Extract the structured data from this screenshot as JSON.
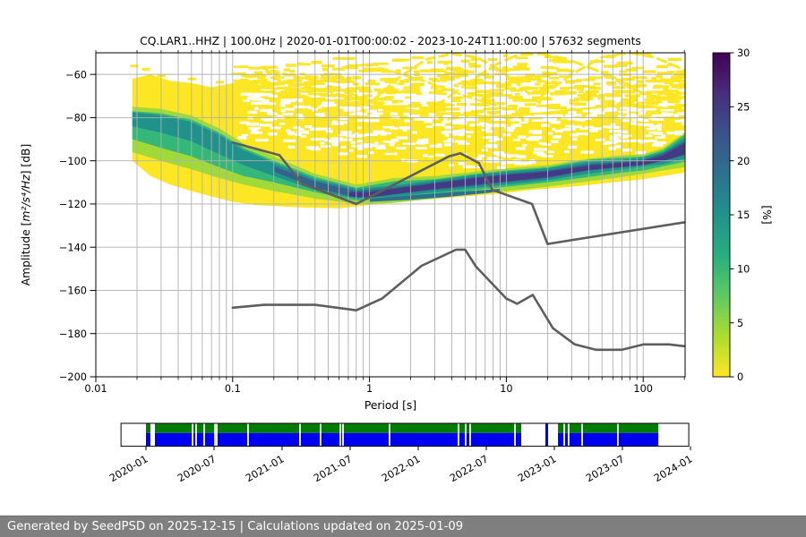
{
  "title": "CQ.LAR1..HHZ | 100.0Hz | 2020-01-01T00:00:02 - 2023-10-24T11:00:00 | 57632 segments",
  "footer": {
    "text": "Generated by SeedPSD on 2025-12-15 | Calculations updated on 2025-01-09"
  },
  "chart_data": {
    "type": "heatmap",
    "title": "CQ.LAR1..HHZ | 100.0Hz | 2020-01-01T00:00:02 - 2023-10-24T11:00:00 | 57632 segments",
    "xlabel": "Period [s]",
    "ylabel": "Amplitude [m²/s⁴/Hz] [dB]",
    "xscale": "log",
    "xlim": [
      0.01,
      200
    ],
    "ylim": [
      -200,
      -50
    ],
    "xticks": [
      {
        "v": 0.01,
        "label": "0.01"
      },
      {
        "v": 0.1,
        "label": "0.1"
      },
      {
        "v": 1,
        "label": "1"
      },
      {
        "v": 10,
        "label": "10"
      },
      {
        "v": 100,
        "label": "100"
      }
    ],
    "yticks": [
      {
        "v": -60,
        "label": "−60"
      },
      {
        "v": -80,
        "label": "−80"
      },
      {
        "v": -100,
        "label": "−100"
      },
      {
        "v": -120,
        "label": "−120"
      },
      {
        "v": -140,
        "label": "−140"
      },
      {
        "v": -160,
        "label": "−160"
      },
      {
        "v": -180,
        "label": "−180"
      },
      {
        "v": -200,
        "label": "−200"
      }
    ],
    "grid_color": "#b0b0b0",
    "colorbar": {
      "label": "[%]",
      "ticks": [
        0,
        5,
        10,
        15,
        20,
        25,
        30
      ],
      "cmap": "viridis_r",
      "stops_bottom_to_top": [
        "#fde725",
        "#addc30",
        "#5ec962",
        "#28ae80",
        "#21918c",
        "#2c728e",
        "#3b528b",
        "#472d7b",
        "#440154"
      ]
    },
    "noise_models": {
      "color": "#5e5e5e",
      "nhnm": [
        [
          0.1,
          -91.5
        ],
        [
          0.22,
          -97.4
        ],
        [
          0.32,
          -110.5
        ],
        [
          0.8,
          -120.0
        ],
        [
          3.8,
          -98.0
        ],
        [
          4.6,
          -96.5
        ],
        [
          6.3,
          -101.0
        ],
        [
          7.9,
          -113.5
        ],
        [
          15.4,
          -120.0
        ],
        [
          20.0,
          -138.5
        ],
        [
          354.8,
          -126.0
        ]
      ],
      "nlnm": [
        [
          0.1,
          -168.0
        ],
        [
          0.17,
          -166.7
        ],
        [
          0.4,
          -166.7
        ],
        [
          0.8,
          -169.2
        ],
        [
          1.24,
          -163.7
        ],
        [
          2.4,
          -148.6
        ],
        [
          4.3,
          -141.1
        ],
        [
          5.0,
          -141.1
        ],
        [
          6.0,
          -149.0
        ],
        [
          10.0,
          -163.8
        ],
        [
          12.0,
          -166.2
        ],
        [
          15.6,
          -162.1
        ],
        [
          21.9,
          -177.5
        ],
        [
          31.6,
          -185.0
        ],
        [
          45.0,
          -187.5
        ],
        [
          70.0,
          -187.5
        ],
        [
          101.0,
          -185.0
        ],
        [
          154.0,
          -185.0
        ],
        [
          328.0,
          -187.5
        ]
      ]
    },
    "density_bands": [
      {
        "name": "yellow-main",
        "color": "#fde725",
        "points": [
          [
            0.0185,
            -62,
            -100
          ],
          [
            0.025,
            -60,
            -107
          ],
          [
            0.035,
            -63,
            -111
          ],
          [
            0.05,
            -64,
            -114
          ],
          [
            0.07,
            -66,
            -116.5
          ],
          [
            0.1,
            -64,
            -119
          ],
          [
            0.15,
            -67,
            -120.5
          ],
          [
            0.3,
            -70,
            -121.5
          ],
          [
            0.6,
            -72,
            -122
          ],
          [
            1,
            -74,
            -120.5
          ],
          [
            2,
            -76,
            -118.5
          ],
          [
            4,
            -78,
            -117
          ],
          [
            8,
            -79,
            -115.5
          ],
          [
            15,
            -78,
            -113.5
          ],
          [
            30,
            -76,
            -112
          ],
          [
            60,
            -74,
            -110
          ],
          [
            100,
            -74,
            -108.5
          ],
          [
            140,
            -75,
            -107
          ],
          [
            200,
            -76,
            -105.5
          ]
        ]
      },
      {
        "name": "light-green",
        "color": "#a0da39",
        "points": [
          [
            0.0185,
            -75,
            -96
          ],
          [
            0.03,
            -76,
            -100
          ],
          [
            0.05,
            -79,
            -104
          ],
          [
            0.08,
            -85,
            -108
          ],
          [
            0.12,
            -92,
            -111
          ],
          [
            0.2,
            -98,
            -114
          ],
          [
            0.4,
            -106,
            -117.5
          ],
          [
            0.8,
            -111,
            -120
          ],
          [
            1.5,
            -108,
            -119.5
          ],
          [
            3,
            -107,
            -117.5
          ],
          [
            6,
            -105,
            -115.5
          ],
          [
            10,
            -103.5,
            -114
          ],
          [
            20,
            -102,
            -112
          ],
          [
            40,
            -99,
            -109.5
          ],
          [
            70,
            -97.5,
            -107.5
          ],
          [
            100,
            -97,
            -106
          ],
          [
            140,
            -94,
            -104.5
          ],
          [
            200,
            -87,
            -103
          ]
        ]
      },
      {
        "name": "green",
        "color": "#35b779",
        "points": [
          [
            0.0185,
            -77,
            -90
          ],
          [
            0.03,
            -78,
            -94
          ],
          [
            0.05,
            -81,
            -98
          ],
          [
            0.08,
            -87,
            -103
          ],
          [
            0.12,
            -94,
            -107
          ],
          [
            0.2,
            -100,
            -110
          ],
          [
            0.4,
            -107.5,
            -114.5
          ],
          [
            0.8,
            -112.5,
            -118.5
          ],
          [
            1.5,
            -109.5,
            -117.5
          ],
          [
            3,
            -108.5,
            -115.5
          ],
          [
            6,
            -106,
            -113.5
          ],
          [
            10,
            -104.5,
            -112
          ],
          [
            20,
            -103,
            -110
          ],
          [
            40,
            -99.5,
            -107.5
          ],
          [
            70,
            -98.5,
            -105.5
          ],
          [
            100,
            -98,
            -104.5
          ],
          [
            140,
            -95,
            -102.5
          ],
          [
            200,
            -88,
            -100.5
          ]
        ]
      },
      {
        "name": "teal",
        "color": "#21918c",
        "points": [
          [
            0.0185,
            -77.5,
            -84
          ],
          [
            0.03,
            -79,
            -87
          ],
          [
            0.05,
            -82,
            -91
          ],
          [
            0.08,
            -88,
            -97
          ],
          [
            0.12,
            -95,
            -102
          ],
          [
            0.2,
            -101,
            -107
          ],
          [
            0.4,
            -108.5,
            -113.5
          ],
          [
            0.8,
            -113,
            -117.5
          ],
          [
            1.5,
            -111.5,
            -116.5
          ],
          [
            3,
            -109,
            -114.5
          ],
          [
            6,
            -106.5,
            -112.5
          ],
          [
            10,
            -105,
            -111
          ],
          [
            20,
            -103.5,
            -109
          ],
          [
            40,
            -100.5,
            -106
          ],
          [
            70,
            -99.5,
            -104
          ],
          [
            100,
            -98.5,
            -102.5
          ],
          [
            140,
            -96,
            -101.5
          ],
          [
            200,
            -89.5,
            -99
          ]
        ]
      },
      {
        "name": "navy",
        "color": "#33638d",
        "points": [
          [
            0.2,
            -102.5,
            -105
          ],
          [
            0.4,
            -109.5,
            -112.5
          ],
          [
            0.8,
            -114,
            -117
          ],
          [
            1.5,
            -112.5,
            -115.5
          ],
          [
            3,
            -110,
            -113.5
          ],
          [
            6,
            -107.5,
            -111.5
          ],
          [
            10,
            -106,
            -110
          ],
          [
            20,
            -104.5,
            -108
          ],
          [
            40,
            -101.5,
            -104.5
          ],
          [
            70,
            -100.5,
            -103
          ],
          [
            100,
            -99.5,
            -102
          ],
          [
            140,
            -96.5,
            -100
          ],
          [
            200,
            -91,
            -97.5
          ]
        ]
      },
      {
        "name": "dark-core",
        "color": "#443983",
        "points": [
          [
            0.7,
            -114.5,
            -116.5
          ],
          [
            1,
            -114.5,
            -117
          ],
          [
            1.5,
            -113,
            -115.5
          ],
          [
            3,
            -110.5,
            -113
          ],
          [
            6,
            -108,
            -111
          ],
          [
            10,
            -106.5,
            -109.5
          ],
          [
            20,
            -105,
            -107.5
          ],
          [
            40,
            -102.3,
            -104.2
          ],
          [
            70,
            -101,
            -102.8
          ],
          [
            100,
            -100,
            -101.8
          ],
          [
            140,
            -97.5,
            -100
          ],
          [
            200,
            -92,
            -97
          ]
        ]
      },
      {
        "name": "second-band",
        "color": "#2d708e",
        "points": [
          [
            1,
            -117.5,
            -119
          ],
          [
            2,
            -116,
            -118
          ],
          [
            4,
            -114.5,
            -116.5
          ],
          [
            7,
            -113.5,
            -115
          ],
          [
            9,
            -113,
            -114.2
          ]
        ]
      }
    ],
    "speckle": {
      "color": "#fde725",
      "ceiling": [
        [
          0.145,
          -55
        ],
        [
          0.3,
          -52
        ],
        [
          0.6,
          -51
        ],
        [
          1,
          -51
        ],
        [
          2,
          -50
        ],
        [
          5,
          -49
        ],
        [
          10,
          -49
        ],
        [
          20,
          -50
        ],
        [
          50,
          -50
        ],
        [
          100,
          -49
        ],
        [
          200,
          -50
        ]
      ],
      "n_streaks": 560,
      "n_holes": 430,
      "left_dashes": [
        [
          0.019,
          -55.5
        ],
        [
          0.023,
          -57
        ],
        [
          0.03,
          -60
        ],
        [
          0.05,
          -61.5
        ],
        [
          0.08,
          -63
        ],
        [
          0.12,
          -62
        ],
        [
          0.16,
          -61
        ],
        [
          0.2,
          -64
        ]
      ]
    },
    "arcs": [
      {
        "w": 3,
        "dash": "9 6",
        "pts": [
          [
            0.9,
            -76
          ],
          [
            1.6,
            -62
          ],
          [
            2.6,
            -53
          ],
          [
            4,
            -50.5
          ],
          [
            6,
            -52
          ],
          [
            9,
            -58
          ],
          [
            13,
            -66
          ],
          [
            18,
            -74
          ]
        ]
      },
      {
        "w": 3,
        "dash": "12 7",
        "pts": [
          [
            3,
            -75
          ],
          [
            5,
            -65
          ],
          [
            8,
            -56
          ],
          [
            12,
            -51
          ],
          [
            18,
            -50.5
          ],
          [
            28,
            -53
          ],
          [
            45,
            -58
          ],
          [
            70,
            -64
          ],
          [
            110,
            -70
          ]
        ]
      },
      {
        "w": 3,
        "dash": "10 6",
        "pts": [
          [
            18,
            -70
          ],
          [
            30,
            -60
          ],
          [
            50,
            -52
          ],
          [
            80,
            -50
          ],
          [
            120,
            -52
          ],
          [
            170,
            -56
          ],
          [
            200,
            -58
          ]
        ]
      },
      {
        "w": 2.5,
        "dash": "8 5",
        "pts": [
          [
            0.16,
            -57
          ],
          [
            0.4,
            -63
          ],
          [
            0.9,
            -71
          ]
        ]
      },
      {
        "w": 2.5,
        "dash": "7 5",
        "pts": [
          [
            0.2,
            -62
          ],
          [
            0.5,
            -68
          ],
          [
            1.2,
            -74
          ]
        ]
      },
      {
        "w": 2.5,
        "dash": "9 5",
        "pts": [
          [
            1.2,
            -57
          ],
          [
            2.5,
            -63
          ],
          [
            5,
            -70
          ],
          [
            9,
            -75
          ]
        ]
      }
    ],
    "coverage_timeline": {
      "row_top_color": "#007d00",
      "row_bottom_color": "#0000f0",
      "axis_months": [
        -2.2,
        47.85
      ],
      "segments_months": [
        [
          0,
          0.39
        ],
        [
          0.79,
          33.08
        ],
        [
          36.32,
          45.16
        ]
      ],
      "blue_sliver_months": [
        35.21,
        35.45
      ],
      "gap_lines_months": [
        4.11,
        4.42,
        5.13,
        6.08,
        6.24,
        9.0,
        13.58,
        15.39,
        17.13,
        17.37,
        21.47,
        27.55,
        28.18,
        28.58,
        32.53,
        36.87,
        37.26,
        38.45,
        41.6
      ],
      "ticks": [
        {
          "m": 0,
          "label": "2020-01"
        },
        {
          "m": 6,
          "label": "2020-07"
        },
        {
          "m": 12,
          "label": "2021-01"
        },
        {
          "m": 18,
          "label": "2021-07"
        },
        {
          "m": 24,
          "label": "2022-01"
        },
        {
          "m": 30,
          "label": "2022-07"
        },
        {
          "m": 36,
          "label": "2023-01"
        },
        {
          "m": 42,
          "label": "2023-07"
        },
        {
          "m": 48,
          "label": "2024-01"
        }
      ]
    }
  }
}
